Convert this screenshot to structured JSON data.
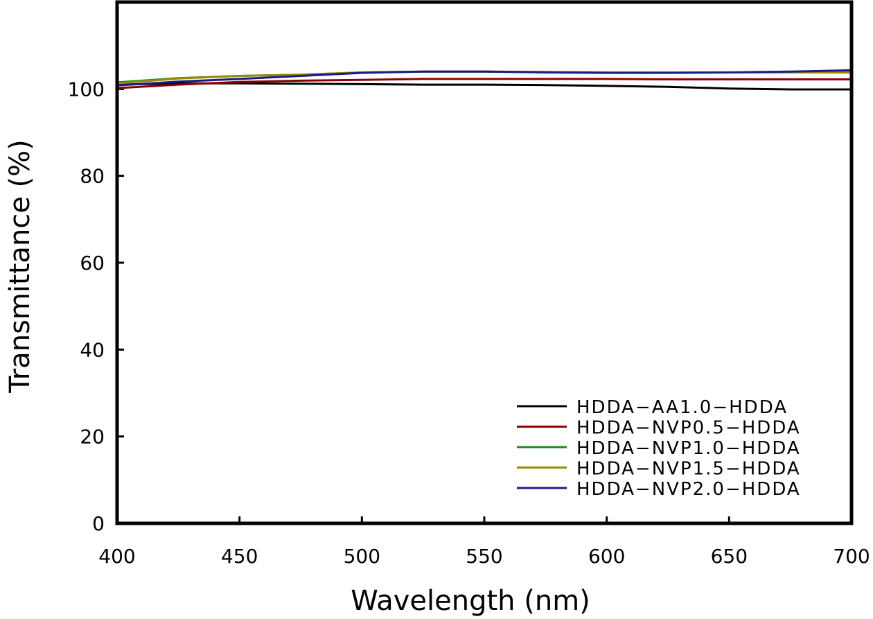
{
  "chart_data": {
    "type": "line",
    "title": "",
    "xlabel": "Wavelength (nm)",
    "ylabel": "Transmittance (%)",
    "xlim": [
      400,
      700
    ],
    "ylim": [
      0,
      120
    ],
    "xticks": [
      400,
      450,
      500,
      550,
      600,
      650,
      700
    ],
    "yticks": [
      0,
      20,
      40,
      60,
      80,
      100
    ],
    "xtick_labels": [
      "400",
      "450",
      "500",
      "550",
      "600",
      "650",
      "700"
    ],
    "ytick_labels": [
      "0",
      "20",
      "40",
      "60",
      "80",
      "100"
    ],
    "grid": false,
    "legend_position": "bottom-right",
    "x": [
      400,
      425,
      450,
      475,
      500,
      525,
      550,
      575,
      600,
      625,
      650,
      675,
      700
    ],
    "series": [
      {
        "name": "HDDA−AA1.0−HDDA",
        "color": "#000000",
        "values": [
          101.0,
          101.3,
          101.3,
          101.2,
          101.1,
          101.0,
          101.0,
          100.9,
          100.7,
          100.5,
          100.1,
          99.9,
          99.9
        ]
      },
      {
        "name": "HDDA−NVP0.5−HDDA",
        "color": "#8b0000",
        "values": [
          100.2,
          101.0,
          101.6,
          101.9,
          102.1,
          102.3,
          102.3,
          102.3,
          102.3,
          102.2,
          102.2,
          102.2,
          102.2
        ]
      },
      {
        "name": "HDDA−NVP1.0−HDDA",
        "color": "#1a8a1a",
        "values": [
          101.5,
          102.5,
          103.0,
          103.3,
          103.8,
          104.0,
          104.0,
          103.9,
          103.8,
          103.8,
          103.8,
          103.8,
          103.8
        ]
      },
      {
        "name": "HDDA−NVP1.5−HDDA",
        "color": "#9a8a00",
        "values": [
          101.3,
          102.4,
          103.0,
          103.3,
          103.8,
          104.0,
          104.0,
          103.9,
          103.8,
          103.8,
          103.8,
          103.8,
          103.9
        ]
      },
      {
        "name": "HDDA−NVP2.0−HDDA",
        "color": "#1a1a8a",
        "values": [
          100.8,
          101.7,
          102.3,
          103.0,
          103.7,
          104.0,
          104.0,
          103.8,
          103.7,
          103.7,
          103.8,
          104.0,
          104.3
        ]
      }
    ]
  }
}
